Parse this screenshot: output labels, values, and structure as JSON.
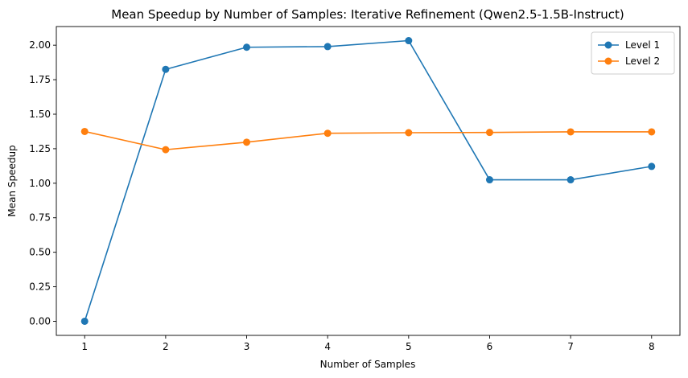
{
  "chart_data": {
    "type": "line",
    "title": "Mean Speedup by Number of Samples: Iterative Refinement (Qwen2.5-1.5B-Instruct)",
    "xlabel": "Number of Samples",
    "ylabel": "Mean Speedup",
    "x": [
      1,
      2,
      3,
      4,
      5,
      6,
      7,
      8
    ],
    "xticks": [
      "1",
      "2",
      "3",
      "4",
      "5",
      "6",
      "7",
      "8"
    ],
    "yticks": [
      "0.00",
      "0.25",
      "0.50",
      "0.75",
      "1.00",
      "1.25",
      "1.50",
      "1.75",
      "2.00"
    ],
    "xlim": [
      0.65,
      8.35
    ],
    "ylim": [
      -0.102,
      2.135
    ],
    "grid": false,
    "legend_position": "top-right",
    "series": [
      {
        "name": "Level 1",
        "color": "#1f77b4",
        "values": [
          0.0,
          1.825,
          1.985,
          1.99,
          2.033,
          1.025,
          1.025,
          1.122
        ]
      },
      {
        "name": "Level 2",
        "color": "#ff7f0e",
        "values": [
          1.375,
          1.243,
          1.297,
          1.362,
          1.366,
          1.368,
          1.372,
          1.372
        ]
      }
    ]
  }
}
